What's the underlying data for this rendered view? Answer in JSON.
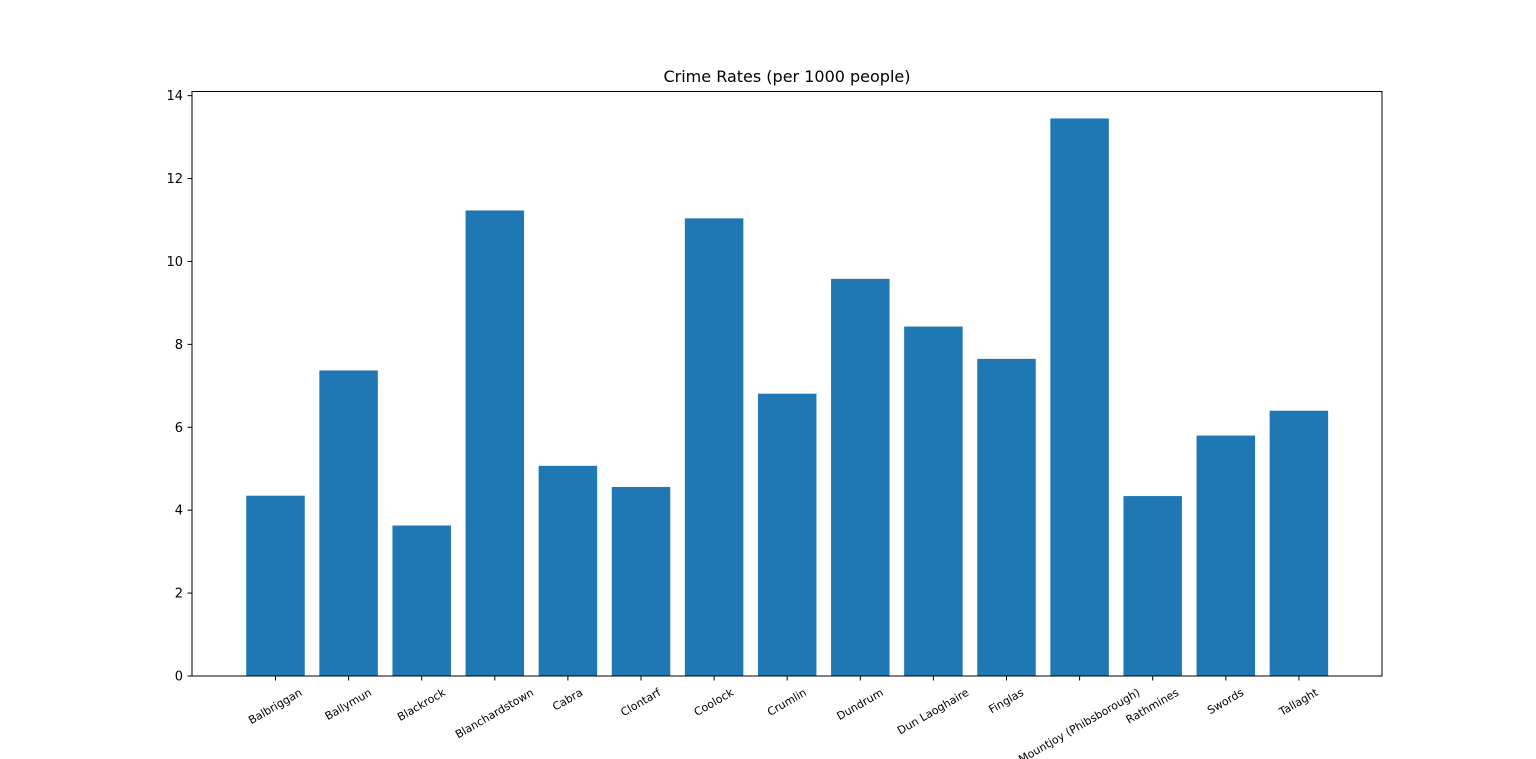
{
  "chart_data": {
    "type": "bar",
    "title": "Crime Rates (per 1000 people)",
    "xlabel": "",
    "ylabel": "",
    "categories": [
      "Balbriggan",
      "Ballymun",
      "Blackrock",
      "Blanchardstown",
      "Cabra",
      "Clontarf",
      "Coolock",
      "Crumlin",
      "Dundrum",
      "Dun Laoghaire",
      "Finglas",
      "Mountjoy (Phibsborough)",
      "Rathmines",
      "Swords",
      "Tallaght"
    ],
    "values": [
      4.35,
      7.37,
      3.63,
      11.23,
      5.07,
      4.56,
      11.04,
      6.81,
      9.58,
      8.43,
      7.65,
      13.45,
      4.34,
      5.8,
      6.4
    ],
    "ylim": [
      0,
      14.1
    ],
    "yticks": [
      0,
      2,
      4,
      6,
      8,
      10,
      12,
      14
    ],
    "grid": false,
    "legend": "none",
    "bar_color": "#1f77b4",
    "tick_label_rotation_deg": 30
  }
}
